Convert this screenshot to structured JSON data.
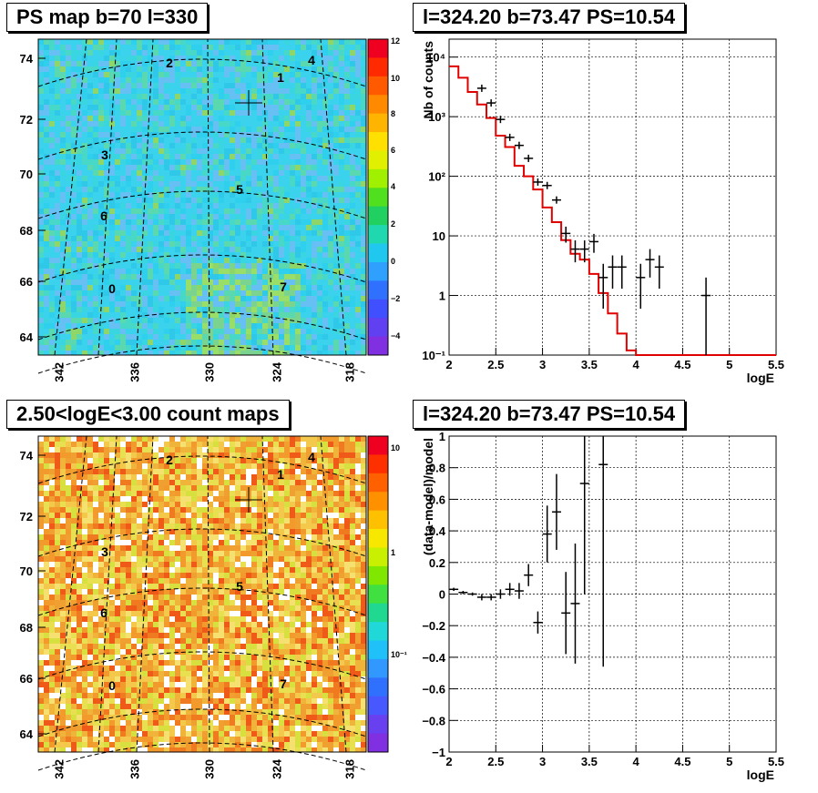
{
  "panels": {
    "ps_map": {
      "title": "PS map b=70 l=330",
      "y_ticks": [
        "74",
        "72",
        "70",
        "68",
        "66",
        "64"
      ],
      "x_ticks": [
        "342",
        "336",
        "330",
        "324",
        "318"
      ],
      "colorbar_ticks": [
        "12",
        "10",
        "8",
        "6",
        "4",
        "2",
        "0",
        "−2",
        "−4"
      ],
      "source_labels": [
        "0",
        "1",
        "2",
        "3",
        "4",
        "5",
        "6",
        "7"
      ]
    },
    "count_map": {
      "title": "2.50<logE<3.00 count maps",
      "y_ticks": [
        "74",
        "72",
        "70",
        "68",
        "66",
        "64"
      ],
      "x_ticks": [
        "342",
        "336",
        "330",
        "324",
        "318"
      ],
      "colorbar_ticks": [
        "10",
        "1",
        "10⁻¹"
      ],
      "source_labels": [
        "0",
        "1",
        "2",
        "3",
        "4",
        "5",
        "6",
        "7"
      ]
    },
    "spectrum": {
      "title": "l=324.20 b=73.47 PS=10.54"
    },
    "residual": {
      "title": "l=324.20 b=73.47 PS=10.54"
    }
  },
  "chart_data": [
    {
      "type": "heatmap",
      "title": "PS map b=70 l=330",
      "ylim": [
        63.5,
        75
      ],
      "colorscale_range": [
        -5,
        12
      ],
      "marker_label": "+",
      "source_labels": [
        "0",
        "1",
        "2",
        "3",
        "4",
        "5",
        "6",
        "7"
      ]
    },
    {
      "type": "scatter",
      "title": "l=324.20 b=73.47 PS=10.54",
      "xlabel": "logE",
      "ylabel": "Nb of counts",
      "xlim": [
        2,
        5.5
      ],
      "ylim": [
        0.1,
        20000
      ],
      "yscale": "log",
      "grid": true,
      "x_ticks": [
        "2",
        "2.5",
        "3",
        "3.5",
        "4",
        "4.5",
        "5",
        "5.5"
      ],
      "y_ticks": [
        "10⁴",
        "10³",
        "10²",
        "10",
        "1",
        "10⁻¹"
      ],
      "model_step": {
        "edges": [
          2.0,
          2.1,
          2.2,
          2.3,
          2.4,
          2.5,
          2.6,
          2.7,
          2.8,
          2.9,
          3.0,
          3.1,
          3.2,
          3.3,
          3.4,
          3.5,
          3.6,
          3.7,
          3.8,
          3.9,
          4.0,
          5.5
        ],
        "values": [
          7000,
          4500,
          2600,
          1600,
          950,
          480,
          310,
          150,
          100,
          60,
          30,
          17,
          8.5,
          5,
          4,
          2.3,
          1.1,
          0.5,
          0.23,
          0.12,
          0.1
        ]
      },
      "data": [
        {
          "x": 2.35,
          "y": 3000,
          "err": 0
        },
        {
          "x": 2.45,
          "y": 1700,
          "err": 0
        },
        {
          "x": 2.55,
          "y": 900,
          "err": 0
        },
        {
          "x": 2.65,
          "y": 450,
          "err": 0
        },
        {
          "x": 2.75,
          "y": 330,
          "err": 0
        },
        {
          "x": 2.85,
          "y": 200,
          "err": 0
        },
        {
          "x": 2.95,
          "y": 80,
          "err": 0
        },
        {
          "x": 3.05,
          "y": 70,
          "err": 0
        },
        {
          "x": 3.15,
          "y": 40,
          "err": 0
        },
        {
          "x": 3.25,
          "y": 11,
          "err": 3.3
        },
        {
          "x": 3.35,
          "y": 6,
          "err": 2.4
        },
        {
          "x": 3.45,
          "y": 6,
          "err": 2.4
        },
        {
          "x": 3.55,
          "y": 8,
          "err": 2.8
        },
        {
          "x": 3.65,
          "y": 2,
          "err": 1.4
        },
        {
          "x": 3.75,
          "y": 3,
          "err": 1.7
        },
        {
          "x": 3.85,
          "y": 3,
          "err": 1.7
        },
        {
          "x": 4.05,
          "y": 2,
          "err": 1.4
        },
        {
          "x": 4.15,
          "y": 4,
          "err": 2
        },
        {
          "x": 4.25,
          "y": 3,
          "err": 1.7
        },
        {
          "x": 4.75,
          "y": 1,
          "err": 1
        }
      ]
    },
    {
      "type": "heatmap",
      "title": "2.50<logE<3.00 count maps",
      "colorscale": "log"
    },
    {
      "type": "scatter",
      "title": "l=324.20 b=73.47 PS=10.54",
      "xlabel": "logE",
      "ylabel": "(data-model)/model",
      "xlim": [
        2,
        5.5
      ],
      "ylim": [
        -1,
        1
      ],
      "grid": true,
      "x_ticks": [
        "2",
        "2.5",
        "3",
        "3.5",
        "4",
        "4.5",
        "5",
        "5.5"
      ],
      "y_ticks": [
        "1",
        "0.8",
        "0.6",
        "0.4",
        "0.2",
        "0",
        "−0.2",
        "−0.4",
        "−0.6",
        "−0.8",
        "−1"
      ],
      "data": [
        {
          "x": 2.05,
          "y": 0.03,
          "err": 0.01
        },
        {
          "x": 2.15,
          "y": 0.01,
          "err": 0.01
        },
        {
          "x": 2.25,
          "y": 0.0,
          "err": 0.01
        },
        {
          "x": 2.35,
          "y": -0.02,
          "err": 0.02
        },
        {
          "x": 2.45,
          "y": -0.02,
          "err": 0.02
        },
        {
          "x": 2.55,
          "y": 0.0,
          "err": 0.03
        },
        {
          "x": 2.65,
          "y": 0.03,
          "err": 0.04
        },
        {
          "x": 2.75,
          "y": 0.02,
          "err": 0.05
        },
        {
          "x": 2.85,
          "y": 0.12,
          "err": 0.07
        },
        {
          "x": 2.95,
          "y": -0.18,
          "err": 0.07
        },
        {
          "x": 3.05,
          "y": 0.38,
          "err": 0.18
        },
        {
          "x": 3.15,
          "y": 0.52,
          "err": 0.24
        },
        {
          "x": 3.25,
          "y": -0.12,
          "err": 0.26
        },
        {
          "x": 3.35,
          "y": -0.06,
          "err": 0.38
        },
        {
          "x": 3.45,
          "y": 0.7,
          "err": 0.7
        },
        {
          "x": 3.65,
          "y": 0.82,
          "err": 1.28
        }
      ]
    }
  ]
}
